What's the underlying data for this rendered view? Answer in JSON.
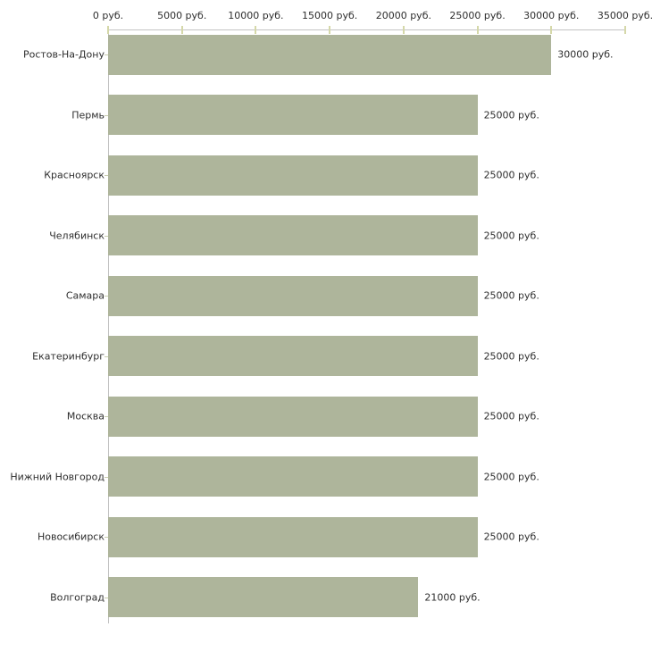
{
  "chart_data": {
    "type": "bar",
    "orientation": "horizontal",
    "title": "",
    "xlabel": "",
    "ylabel": "",
    "unit": "руб.",
    "xlim": [
      0,
      35000
    ],
    "grid": false,
    "legend": false,
    "x_tick_values": [
      0,
      5000,
      10000,
      15000,
      20000,
      25000,
      30000,
      35000
    ],
    "x_tick_labels": [
      "0 руб.",
      "5000 руб.",
      "10000 руб.",
      "15000 руб.",
      "20000 руб.",
      "25000 руб.",
      "30000 руб.",
      "35000 руб."
    ],
    "categories": [
      "Ростов-На-Дону",
      "Пермь",
      "Красноярск",
      "Челябинск",
      "Самара",
      "Екатеринбург",
      "Москва",
      "Нижний Новгород",
      "Новосибирск",
      "Волгоград"
    ],
    "values": [
      30000,
      25000,
      25000,
      25000,
      25000,
      25000,
      25000,
      25000,
      25000,
      21000
    ],
    "value_labels": [
      "30000 руб.",
      "25000 руб.",
      "25000 руб.",
      "25000 руб.",
      "25000 руб.",
      "25000 руб.",
      "25000 руб.",
      "25000 руб.",
      "25000 руб.",
      "21000 руб."
    ],
    "colors": {
      "bar_fill": "#aeb59b",
      "axis_line": "#c2c2c2",
      "x_tick_mark": "#d5d8a9",
      "cat_tick_mark": "#c9cdb0",
      "text": "#2e2e2e",
      "background": "#ffffff"
    }
  }
}
